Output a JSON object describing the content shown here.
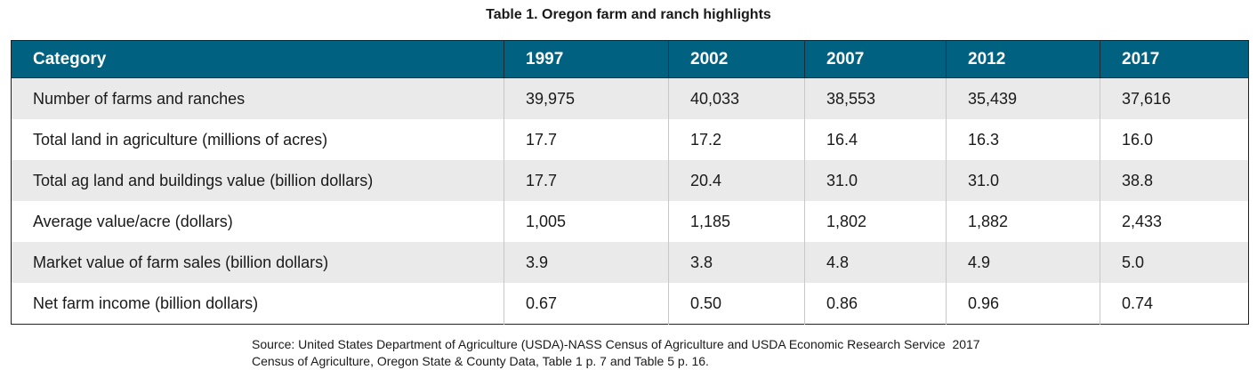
{
  "title": "Table 1. Oregon farm and ranch highlights",
  "header": [
    "Category",
    "1997",
    "2002",
    "2007",
    "2012",
    "2017"
  ],
  "rows": [
    [
      "Number of farms and ranches",
      "39,975",
      "40,033",
      "38,553",
      "35,439",
      "37,616"
    ],
    [
      "Total land in agriculture (millions of acres)",
      "17.7",
      "17.2",
      "16.4",
      "16.3",
      "16.0"
    ],
    [
      "Total ag land and buildings value (billion dollars)",
      "17.7",
      "20.4",
      "31.0",
      "31.0",
      "38.8"
    ],
    [
      "Average value/acre (dollars)",
      "1,005",
      "1,185",
      "1,802",
      "1,882",
      "2,433"
    ],
    [
      "Market value of farm sales (billion dollars)",
      "3.9",
      "3.8",
      "4.8",
      "4.9",
      "5.0"
    ],
    [
      "Net farm income (billion dollars)",
      "0.67",
      "0.50",
      "0.86",
      "0.96",
      "0.74"
    ]
  ],
  "source": {
    "line1": "Source: United States Department of Agriculture (USDA)-NASS Census of Agriculture and USDA Economic Research Service  2017",
    "line2": "Census of Agriculture, Oregon State & County Data, Table 1 p. 7 and Table 5 p. 16."
  },
  "colors": {
    "header_bg": "#006181",
    "header_text": "#ffffff",
    "row_shade": "#eaeaea",
    "row_plain": "#ffffff"
  }
}
